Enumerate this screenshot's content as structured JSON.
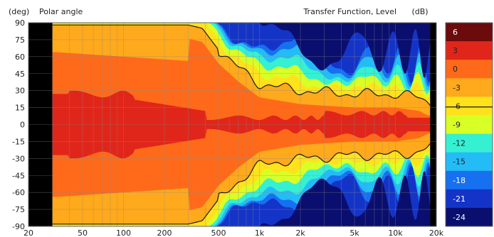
{
  "chart_data": {
    "type": "heatmap",
    "ylabel_unit": "(deg)",
    "ylabel": "Polar angle",
    "colorbar_label": "Transfer Function, Level",
    "colorbar_unit": "(dB)",
    "x_scale": "log",
    "xlim": [
      20,
      20000
    ],
    "ylim": [
      -90,
      90
    ],
    "x_ticks": [
      20,
      50,
      100,
      200,
      500,
      1000,
      2000,
      5000,
      10000,
      20000
    ],
    "x_tick_labels": [
      "20",
      "50",
      "100",
      "200",
      "500",
      "1k",
      "2k",
      "5k",
      "10k",
      "20k"
    ],
    "y_ticks": [
      90,
      75,
      60,
      45,
      30,
      15,
      0,
      -15,
      -30,
      -45,
      -60,
      -75,
      -90
    ],
    "y_tick_labels": [
      "90",
      "75",
      "60",
      "45",
      "30",
      "15",
      "0",
      "-15",
      "-30",
      "-45",
      "-60",
      "-75",
      "-90"
    ],
    "colorbar": {
      "levels": [
        6,
        3,
        0,
        -3,
        -6,
        -9,
        -12,
        -15,
        -18,
        -21,
        -24
      ],
      "level_labels": [
        "6",
        "3",
        "0",
        "-3",
        "-6",
        "-9",
        "-12",
        "-15",
        "-18",
        "-21",
        "-24"
      ],
      "colors": [
        "#6b0b0b",
        "#e0261a",
        "#ff6a1a",
        "#ffa91c",
        "#ffe21c",
        "#d8ff26",
        "#36f0d2",
        "#24bcf7",
        "#1670f0",
        "#1434c8",
        "#0a0e6e"
      ]
    },
    "contour_levels_drawn": [
      -6
    ],
    "no_data_regions": [
      [
        20,
        30
      ],
      [
        18000,
        20000
      ]
    ],
    "grid": true,
    "beamwidth_minus6dB": [
      {
        "freq": 30,
        "angle": 88
      },
      {
        "freq": 300,
        "angle": 88
      },
      {
        "freq": 380,
        "angle": 85
      },
      {
        "freq": 500,
        "angle": 66
      },
      {
        "freq": 700,
        "angle": 50
      },
      {
        "freq": 1000,
        "angle": 36
      },
      {
        "freq": 2000,
        "angle": 30
      },
      {
        "freq": 5000,
        "angle": 27
      },
      {
        "freq": 10000,
        "angle": 27
      },
      {
        "freq": 15000,
        "angle": 24
      },
      {
        "freq": 18000,
        "angle": 19
      }
    ]
  }
}
